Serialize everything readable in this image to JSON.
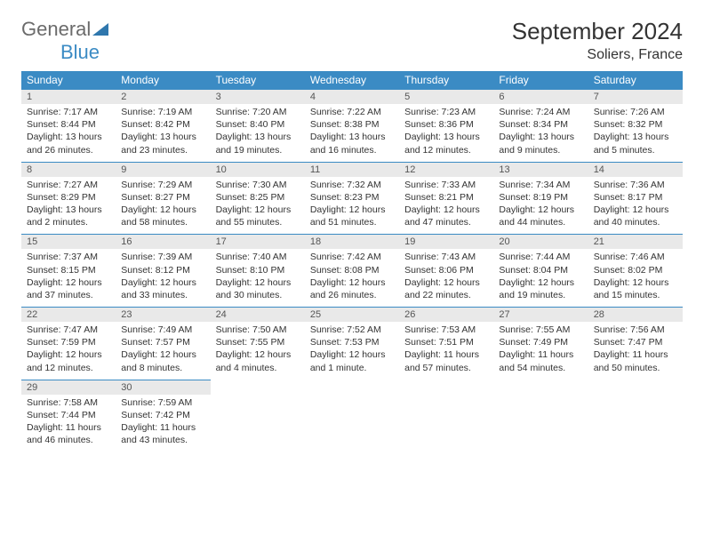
{
  "logo": {
    "text1": "General",
    "text2": "Blue"
  },
  "title": "September 2024",
  "location": "Soliers, France",
  "colors": {
    "header_bg": "#3b8bc4",
    "header_text": "#ffffff",
    "daynum_bg": "#e9e9e9",
    "daynum_text": "#555555",
    "text": "#333333",
    "logo_gray": "#6b6b6b",
    "logo_blue": "#3b8bc4",
    "border": "#3b8bc4"
  },
  "dow": [
    "Sunday",
    "Monday",
    "Tuesday",
    "Wednesday",
    "Thursday",
    "Friday",
    "Saturday"
  ],
  "weeks": [
    [
      {
        "n": "1",
        "sr": "7:17 AM",
        "ss": "8:44 PM",
        "dl": "13 hours and 26 minutes."
      },
      {
        "n": "2",
        "sr": "7:19 AM",
        "ss": "8:42 PM",
        "dl": "13 hours and 23 minutes."
      },
      {
        "n": "3",
        "sr": "7:20 AM",
        "ss": "8:40 PM",
        "dl": "13 hours and 19 minutes."
      },
      {
        "n": "4",
        "sr": "7:22 AM",
        "ss": "8:38 PM",
        "dl": "13 hours and 16 minutes."
      },
      {
        "n": "5",
        "sr": "7:23 AM",
        "ss": "8:36 PM",
        "dl": "13 hours and 12 minutes."
      },
      {
        "n": "6",
        "sr": "7:24 AM",
        "ss": "8:34 PM",
        "dl": "13 hours and 9 minutes."
      },
      {
        "n": "7",
        "sr": "7:26 AM",
        "ss": "8:32 PM",
        "dl": "13 hours and 5 minutes."
      }
    ],
    [
      {
        "n": "8",
        "sr": "7:27 AM",
        "ss": "8:29 PM",
        "dl": "13 hours and 2 minutes."
      },
      {
        "n": "9",
        "sr": "7:29 AM",
        "ss": "8:27 PM",
        "dl": "12 hours and 58 minutes."
      },
      {
        "n": "10",
        "sr": "7:30 AM",
        "ss": "8:25 PM",
        "dl": "12 hours and 55 minutes."
      },
      {
        "n": "11",
        "sr": "7:32 AM",
        "ss": "8:23 PM",
        "dl": "12 hours and 51 minutes."
      },
      {
        "n": "12",
        "sr": "7:33 AM",
        "ss": "8:21 PM",
        "dl": "12 hours and 47 minutes."
      },
      {
        "n": "13",
        "sr": "7:34 AM",
        "ss": "8:19 PM",
        "dl": "12 hours and 44 minutes."
      },
      {
        "n": "14",
        "sr": "7:36 AM",
        "ss": "8:17 PM",
        "dl": "12 hours and 40 minutes."
      }
    ],
    [
      {
        "n": "15",
        "sr": "7:37 AM",
        "ss": "8:15 PM",
        "dl": "12 hours and 37 minutes."
      },
      {
        "n": "16",
        "sr": "7:39 AM",
        "ss": "8:12 PM",
        "dl": "12 hours and 33 minutes."
      },
      {
        "n": "17",
        "sr": "7:40 AM",
        "ss": "8:10 PM",
        "dl": "12 hours and 30 minutes."
      },
      {
        "n": "18",
        "sr": "7:42 AM",
        "ss": "8:08 PM",
        "dl": "12 hours and 26 minutes."
      },
      {
        "n": "19",
        "sr": "7:43 AM",
        "ss": "8:06 PM",
        "dl": "12 hours and 22 minutes."
      },
      {
        "n": "20",
        "sr": "7:44 AM",
        "ss": "8:04 PM",
        "dl": "12 hours and 19 minutes."
      },
      {
        "n": "21",
        "sr": "7:46 AM",
        "ss": "8:02 PM",
        "dl": "12 hours and 15 minutes."
      }
    ],
    [
      {
        "n": "22",
        "sr": "7:47 AM",
        "ss": "7:59 PM",
        "dl": "12 hours and 12 minutes."
      },
      {
        "n": "23",
        "sr": "7:49 AM",
        "ss": "7:57 PM",
        "dl": "12 hours and 8 minutes."
      },
      {
        "n": "24",
        "sr": "7:50 AM",
        "ss": "7:55 PM",
        "dl": "12 hours and 4 minutes."
      },
      {
        "n": "25",
        "sr": "7:52 AM",
        "ss": "7:53 PM",
        "dl": "12 hours and 1 minute."
      },
      {
        "n": "26",
        "sr": "7:53 AM",
        "ss": "7:51 PM",
        "dl": "11 hours and 57 minutes."
      },
      {
        "n": "27",
        "sr": "7:55 AM",
        "ss": "7:49 PM",
        "dl": "11 hours and 54 minutes."
      },
      {
        "n": "28",
        "sr": "7:56 AM",
        "ss": "7:47 PM",
        "dl": "11 hours and 50 minutes."
      }
    ],
    [
      {
        "n": "29",
        "sr": "7:58 AM",
        "ss": "7:44 PM",
        "dl": "11 hours and 46 minutes."
      },
      {
        "n": "30",
        "sr": "7:59 AM",
        "ss": "7:42 PM",
        "dl": "11 hours and 43 minutes."
      },
      null,
      null,
      null,
      null,
      null
    ]
  ],
  "labels": {
    "sunrise": "Sunrise: ",
    "sunset": "Sunset: ",
    "daylight": "Daylight: "
  }
}
